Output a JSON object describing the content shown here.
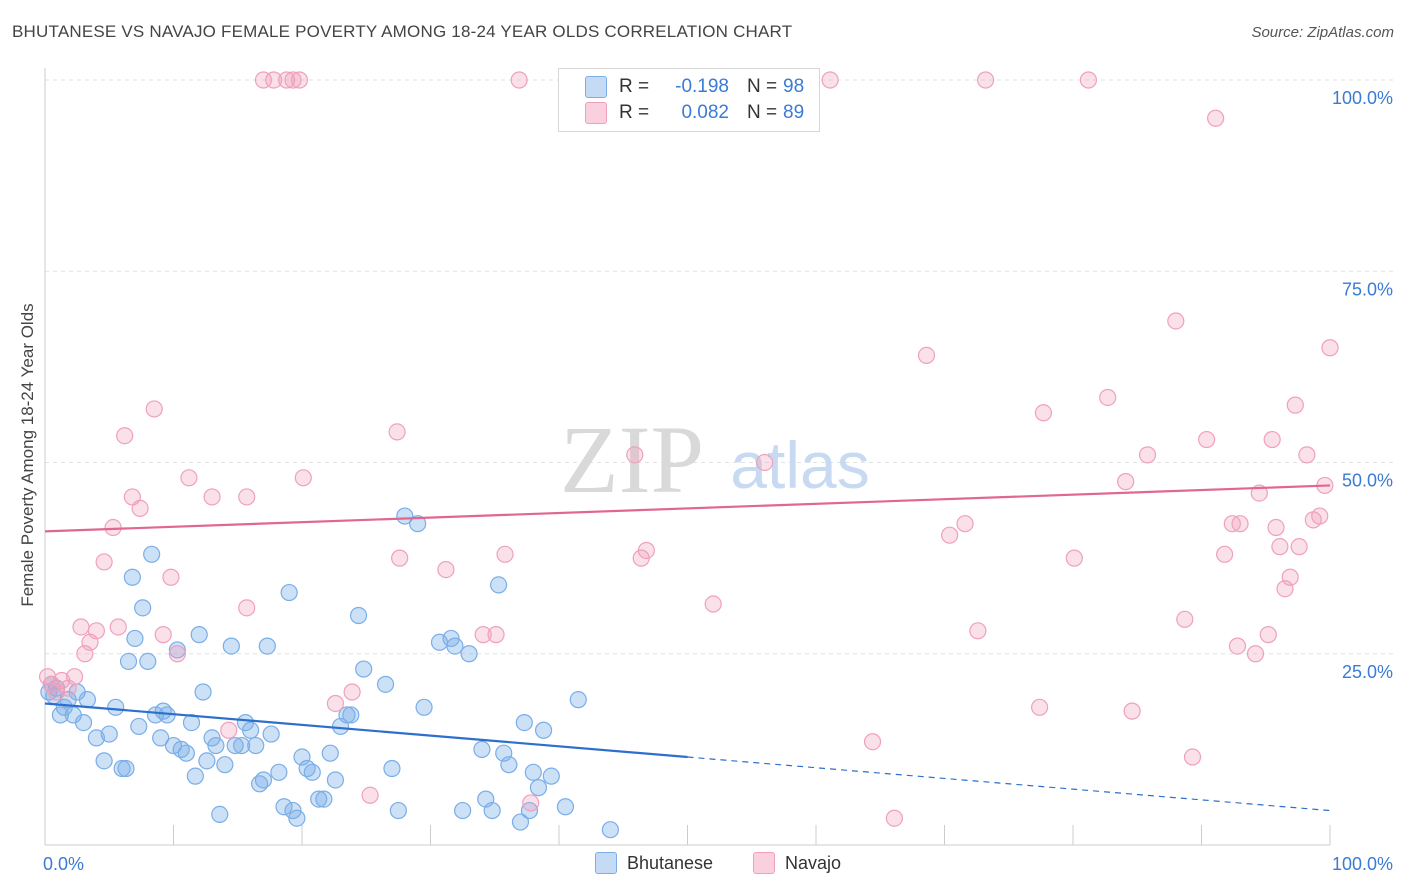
{
  "title": "BHUTANESE VS NAVAJO FEMALE POVERTY AMONG 18-24 YEAR OLDS CORRELATION CHART",
  "source": "Source: ZipAtlas.com",
  "watermark": {
    "zip": "ZIP",
    "atlas": "atlas"
  },
  "legend": {
    "r_label": "R =",
    "n_label": "N =",
    "rows": [
      {
        "name": "Bhutanese",
        "r": "-0.198",
        "n": "98",
        "color": "#7aaee8"
      },
      {
        "name": "Navajo",
        "r": "0.082",
        "n": "89",
        "color": "#f0a0bc"
      }
    ]
  },
  "chart_data": {
    "type": "scatter",
    "title": "BHUTANESE VS NAVAJO FEMALE POVERTY AMONG 18-24 YEAR OLDS CORRELATION CHART",
    "xlabel": "",
    "ylabel": "Female Poverty Among 18-24 Year Olds",
    "xlim": [
      0,
      100
    ],
    "ylim": [
      0,
      100
    ],
    "x_tick_labels": [
      "0.0%",
      "100.0%"
    ],
    "y_tick_labels": [
      "25.0%",
      "50.0%",
      "75.0%",
      "100.0%"
    ],
    "y_ticks": [
      25,
      50,
      75,
      100
    ],
    "grid": "horizontal dashed",
    "legend_position": "bottom",
    "series": [
      {
        "name": "Bhutanese",
        "color": "#7aaee8",
        "trend": {
          "x0": 0,
          "y0": 18.5,
          "x1": 50,
          "y1": 11.5,
          "dashed_to_x": 100,
          "dashed_y1": 4.5,
          "color": "#2e6fcc"
        },
        "points": [
          [
            0.3,
            20
          ],
          [
            0.5,
            21
          ],
          [
            0.7,
            19.5
          ],
          [
            0.9,
            20.5
          ],
          [
            1.2,
            17
          ],
          [
            1.5,
            18
          ],
          [
            1.8,
            19
          ],
          [
            2.2,
            17
          ],
          [
            2.5,
            20
          ],
          [
            3,
            16
          ],
          [
            3.3,
            19
          ],
          [
            4,
            14
          ],
          [
            4.6,
            11
          ],
          [
            5,
            14.5
          ],
          [
            5.5,
            18
          ],
          [
            6,
            10
          ],
          [
            6.3,
            10
          ],
          [
            6.5,
            24
          ],
          [
            6.8,
            35
          ],
          [
            7,
            27
          ],
          [
            7.3,
            15.5
          ],
          [
            7.6,
            31
          ],
          [
            8,
            24
          ],
          [
            8.3,
            38
          ],
          [
            8.6,
            17
          ],
          [
            9,
            14
          ],
          [
            9.2,
            17.5
          ],
          [
            9.5,
            17
          ],
          [
            10,
            13
          ],
          [
            10.3,
            25.5
          ],
          [
            10.6,
            12.5
          ],
          [
            11,
            12
          ],
          [
            11.4,
            16
          ],
          [
            11.7,
            9
          ],
          [
            12,
            27.5
          ],
          [
            12.3,
            20
          ],
          [
            12.6,
            11
          ],
          [
            13,
            14
          ],
          [
            13.3,
            13
          ],
          [
            13.6,
            4
          ],
          [
            14,
            10.5
          ],
          [
            14.5,
            26
          ],
          [
            14.8,
            13
          ],
          [
            15.3,
            13
          ],
          [
            15.6,
            16
          ],
          [
            16,
            15
          ],
          [
            16.4,
            13
          ],
          [
            16.7,
            8
          ],
          [
            17,
            8.5
          ],
          [
            17.3,
            26
          ],
          [
            17.6,
            14.5
          ],
          [
            18.2,
            9.5
          ],
          [
            18.6,
            5
          ],
          [
            19,
            33
          ],
          [
            19.3,
            4.5
          ],
          [
            19.6,
            3.5
          ],
          [
            20,
            11.5
          ],
          [
            20.4,
            10
          ],
          [
            20.8,
            9.5
          ],
          [
            21.3,
            6
          ],
          [
            21.7,
            6
          ],
          [
            22.2,
            12
          ],
          [
            22.6,
            8.5
          ],
          [
            23,
            15.5
          ],
          [
            23.5,
            17
          ],
          [
            23.8,
            17
          ],
          [
            24.4,
            30
          ],
          [
            24.8,
            23
          ],
          [
            26.5,
            21
          ],
          [
            27,
            10
          ],
          [
            27.5,
            4.5
          ],
          [
            28,
            43
          ],
          [
            29,
            42
          ],
          [
            29.5,
            18
          ],
          [
            30.7,
            26.5
          ],
          [
            31.6,
            27
          ],
          [
            31.9,
            26
          ],
          [
            32.5,
            4.5
          ],
          [
            33,
            25
          ],
          [
            34,
            12.5
          ],
          [
            34.3,
            6
          ],
          [
            34.8,
            4.5
          ],
          [
            35.3,
            34
          ],
          [
            35.7,
            12
          ],
          [
            36.1,
            10.5
          ],
          [
            37,
            3
          ],
          [
            37.3,
            16
          ],
          [
            37.7,
            4.5
          ],
          [
            38,
            9.5
          ],
          [
            38.4,
            7.5
          ],
          [
            38.8,
            15
          ],
          [
            39.4,
            9
          ],
          [
            40.5,
            5
          ],
          [
            41.5,
            19
          ],
          [
            44,
            2
          ]
        ]
      },
      {
        "name": "Navajo",
        "color": "#f0a0bc",
        "trend": {
          "x0": 0,
          "y0": 41,
          "x1": 100,
          "y1": 47,
          "color": "#e06790"
        },
        "points": [
          [
            0.2,
            22
          ],
          [
            0.5,
            21
          ],
          [
            0.9,
            20
          ],
          [
            1.3,
            21.5
          ],
          [
            1.8,
            20.5
          ],
          [
            2.3,
            22
          ],
          [
            2.8,
            28.5
          ],
          [
            3.1,
            25
          ],
          [
            3.5,
            26.5
          ],
          [
            4,
            28
          ],
          [
            4.6,
            37
          ],
          [
            5.3,
            41.5
          ],
          [
            5.7,
            28.5
          ],
          [
            6.2,
            53.5
          ],
          [
            6.8,
            45.5
          ],
          [
            7.4,
            44
          ],
          [
            8.5,
            57
          ],
          [
            9.2,
            27.5
          ],
          [
            9.8,
            35
          ],
          [
            10.3,
            25
          ],
          [
            11.2,
            48
          ],
          [
            13,
            45.5
          ],
          [
            14.3,
            15
          ],
          [
            15.7,
            45.5
          ],
          [
            15.7,
            31
          ],
          [
            17,
            100
          ],
          [
            17.8,
            100
          ],
          [
            18.8,
            100
          ],
          [
            19.3,
            100
          ],
          [
            19.8,
            100
          ],
          [
            20.1,
            48
          ],
          [
            22.6,
            18.5
          ],
          [
            23.9,
            20
          ],
          [
            25.3,
            6.5
          ],
          [
            27.4,
            54
          ],
          [
            27.6,
            37.5
          ],
          [
            31.2,
            36
          ],
          [
            34.1,
            27.5
          ],
          [
            35.1,
            27.5
          ],
          [
            35.8,
            38
          ],
          [
            36.9,
            100
          ],
          [
            37.8,
            5.5
          ],
          [
            41.5,
            100
          ],
          [
            45.6,
            100
          ],
          [
            45.9,
            51
          ],
          [
            46.4,
            37.5
          ],
          [
            46.8,
            38.5
          ],
          [
            49.8,
            100
          ],
          [
            52,
            31.5
          ],
          [
            56,
            50
          ],
          [
            61.1,
            100
          ],
          [
            64.4,
            13.5
          ],
          [
            66.1,
            3.5
          ],
          [
            68.6,
            64
          ],
          [
            70.4,
            40.5
          ],
          [
            71.6,
            42
          ],
          [
            72.6,
            28
          ],
          [
            73.2,
            100
          ],
          [
            77.4,
            18
          ],
          [
            77.7,
            56.5
          ],
          [
            80.1,
            37.5
          ],
          [
            81.2,
            100
          ],
          [
            82.7,
            58.5
          ],
          [
            84.1,
            47.5
          ],
          [
            84.6,
            17.5
          ],
          [
            85.8,
            51
          ],
          [
            88,
            68.5
          ],
          [
            88.7,
            29.5
          ],
          [
            89.3,
            11.5
          ],
          [
            90.4,
            53
          ],
          [
            91.1,
            95
          ],
          [
            91.8,
            38
          ],
          [
            92.4,
            42
          ],
          [
            92.8,
            26
          ],
          [
            93,
            42
          ],
          [
            94.2,
            25
          ],
          [
            94.5,
            46
          ],
          [
            95.2,
            27.5
          ],
          [
            95.5,
            53
          ],
          [
            95.8,
            41.5
          ],
          [
            96.1,
            39
          ],
          [
            96.5,
            33.5
          ],
          [
            96.9,
            35
          ],
          [
            97.3,
            57.5
          ],
          [
            97.6,
            39
          ],
          [
            98.2,
            51
          ],
          [
            98.7,
            42.5
          ],
          [
            99.2,
            43
          ],
          [
            99.6,
            47
          ],
          [
            100,
            65
          ]
        ]
      }
    ]
  },
  "bottom_legend": [
    {
      "name": "Bhutanese",
      "color": "#7aaee8"
    },
    {
      "name": "Navajo",
      "color": "#f0a0bc"
    }
  ]
}
